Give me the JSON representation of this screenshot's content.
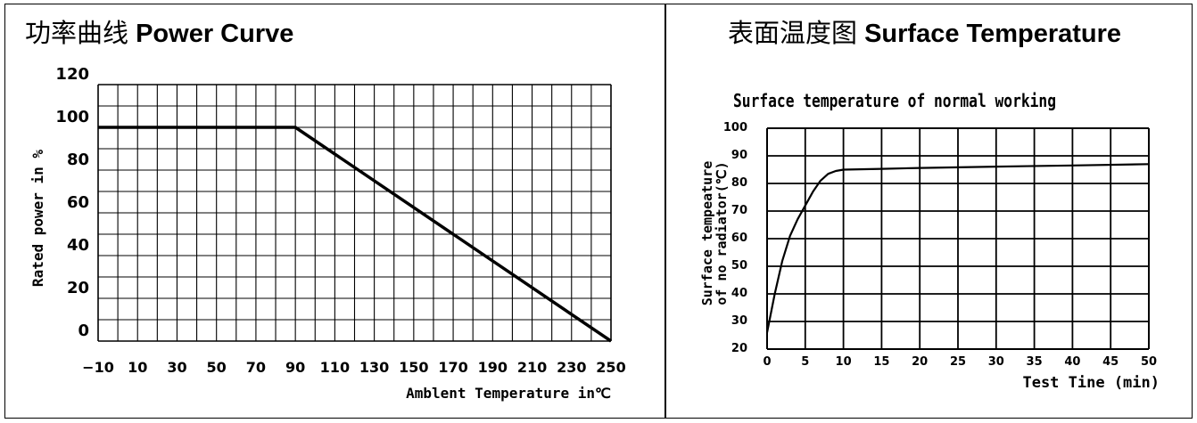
{
  "panels": {
    "left": {
      "title_cn": "功率曲线",
      "title_en": "Power Curve"
    },
    "right": {
      "title_cn": "表面温度图",
      "title_en": "Surface Temperature"
    }
  },
  "chart_data": [
    {
      "type": "line",
      "title": "",
      "xlabel": "Amblent Temperature in℃",
      "ylabel": "Rated power  in %",
      "x_ticks": [
        -10,
        10,
        30,
        50,
        70,
        90,
        110,
        130,
        150,
        170,
        190,
        210,
        230,
        250
      ],
      "y_ticks": [
        0,
        20,
        40,
        60,
        80,
        100,
        120
      ],
      "xlim": [
        -10,
        250
      ],
      "ylim": [
        0,
        120
      ],
      "grid": true,
      "series": [
        {
          "x": [
            -10,
            90,
            250
          ],
          "y": [
            100,
            100,
            0
          ]
        }
      ]
    },
    {
      "type": "line",
      "title": "Surface temperature of normal working",
      "xlabel": "Test Tine (min)",
      "ylabel": "Surface tempeature of no radiator(℃)",
      "ylabel_lines": [
        "Surface tempeature",
        "of no radiator(℃)"
      ],
      "x_ticks": [
        0,
        5,
        10,
        15,
        20,
        25,
        30,
        35,
        40,
        45,
        50
      ],
      "y_ticks": [
        20,
        30,
        40,
        50,
        60,
        70,
        80,
        90,
        100
      ],
      "xlim": [
        0,
        50
      ],
      "ylim": [
        20,
        100
      ],
      "grid": true,
      "series": [
        {
          "x": [
            0,
            1,
            2,
            3,
            4,
            5,
            6,
            7,
            8,
            9,
            10,
            15,
            20,
            30,
            40,
            50
          ],
          "y": [
            26,
            40,
            52,
            61,
            67,
            72,
            77,
            81,
            83.5,
            84.5,
            85,
            85.3,
            85.6,
            86.1,
            86.5,
            87
          ]
        }
      ]
    }
  ]
}
